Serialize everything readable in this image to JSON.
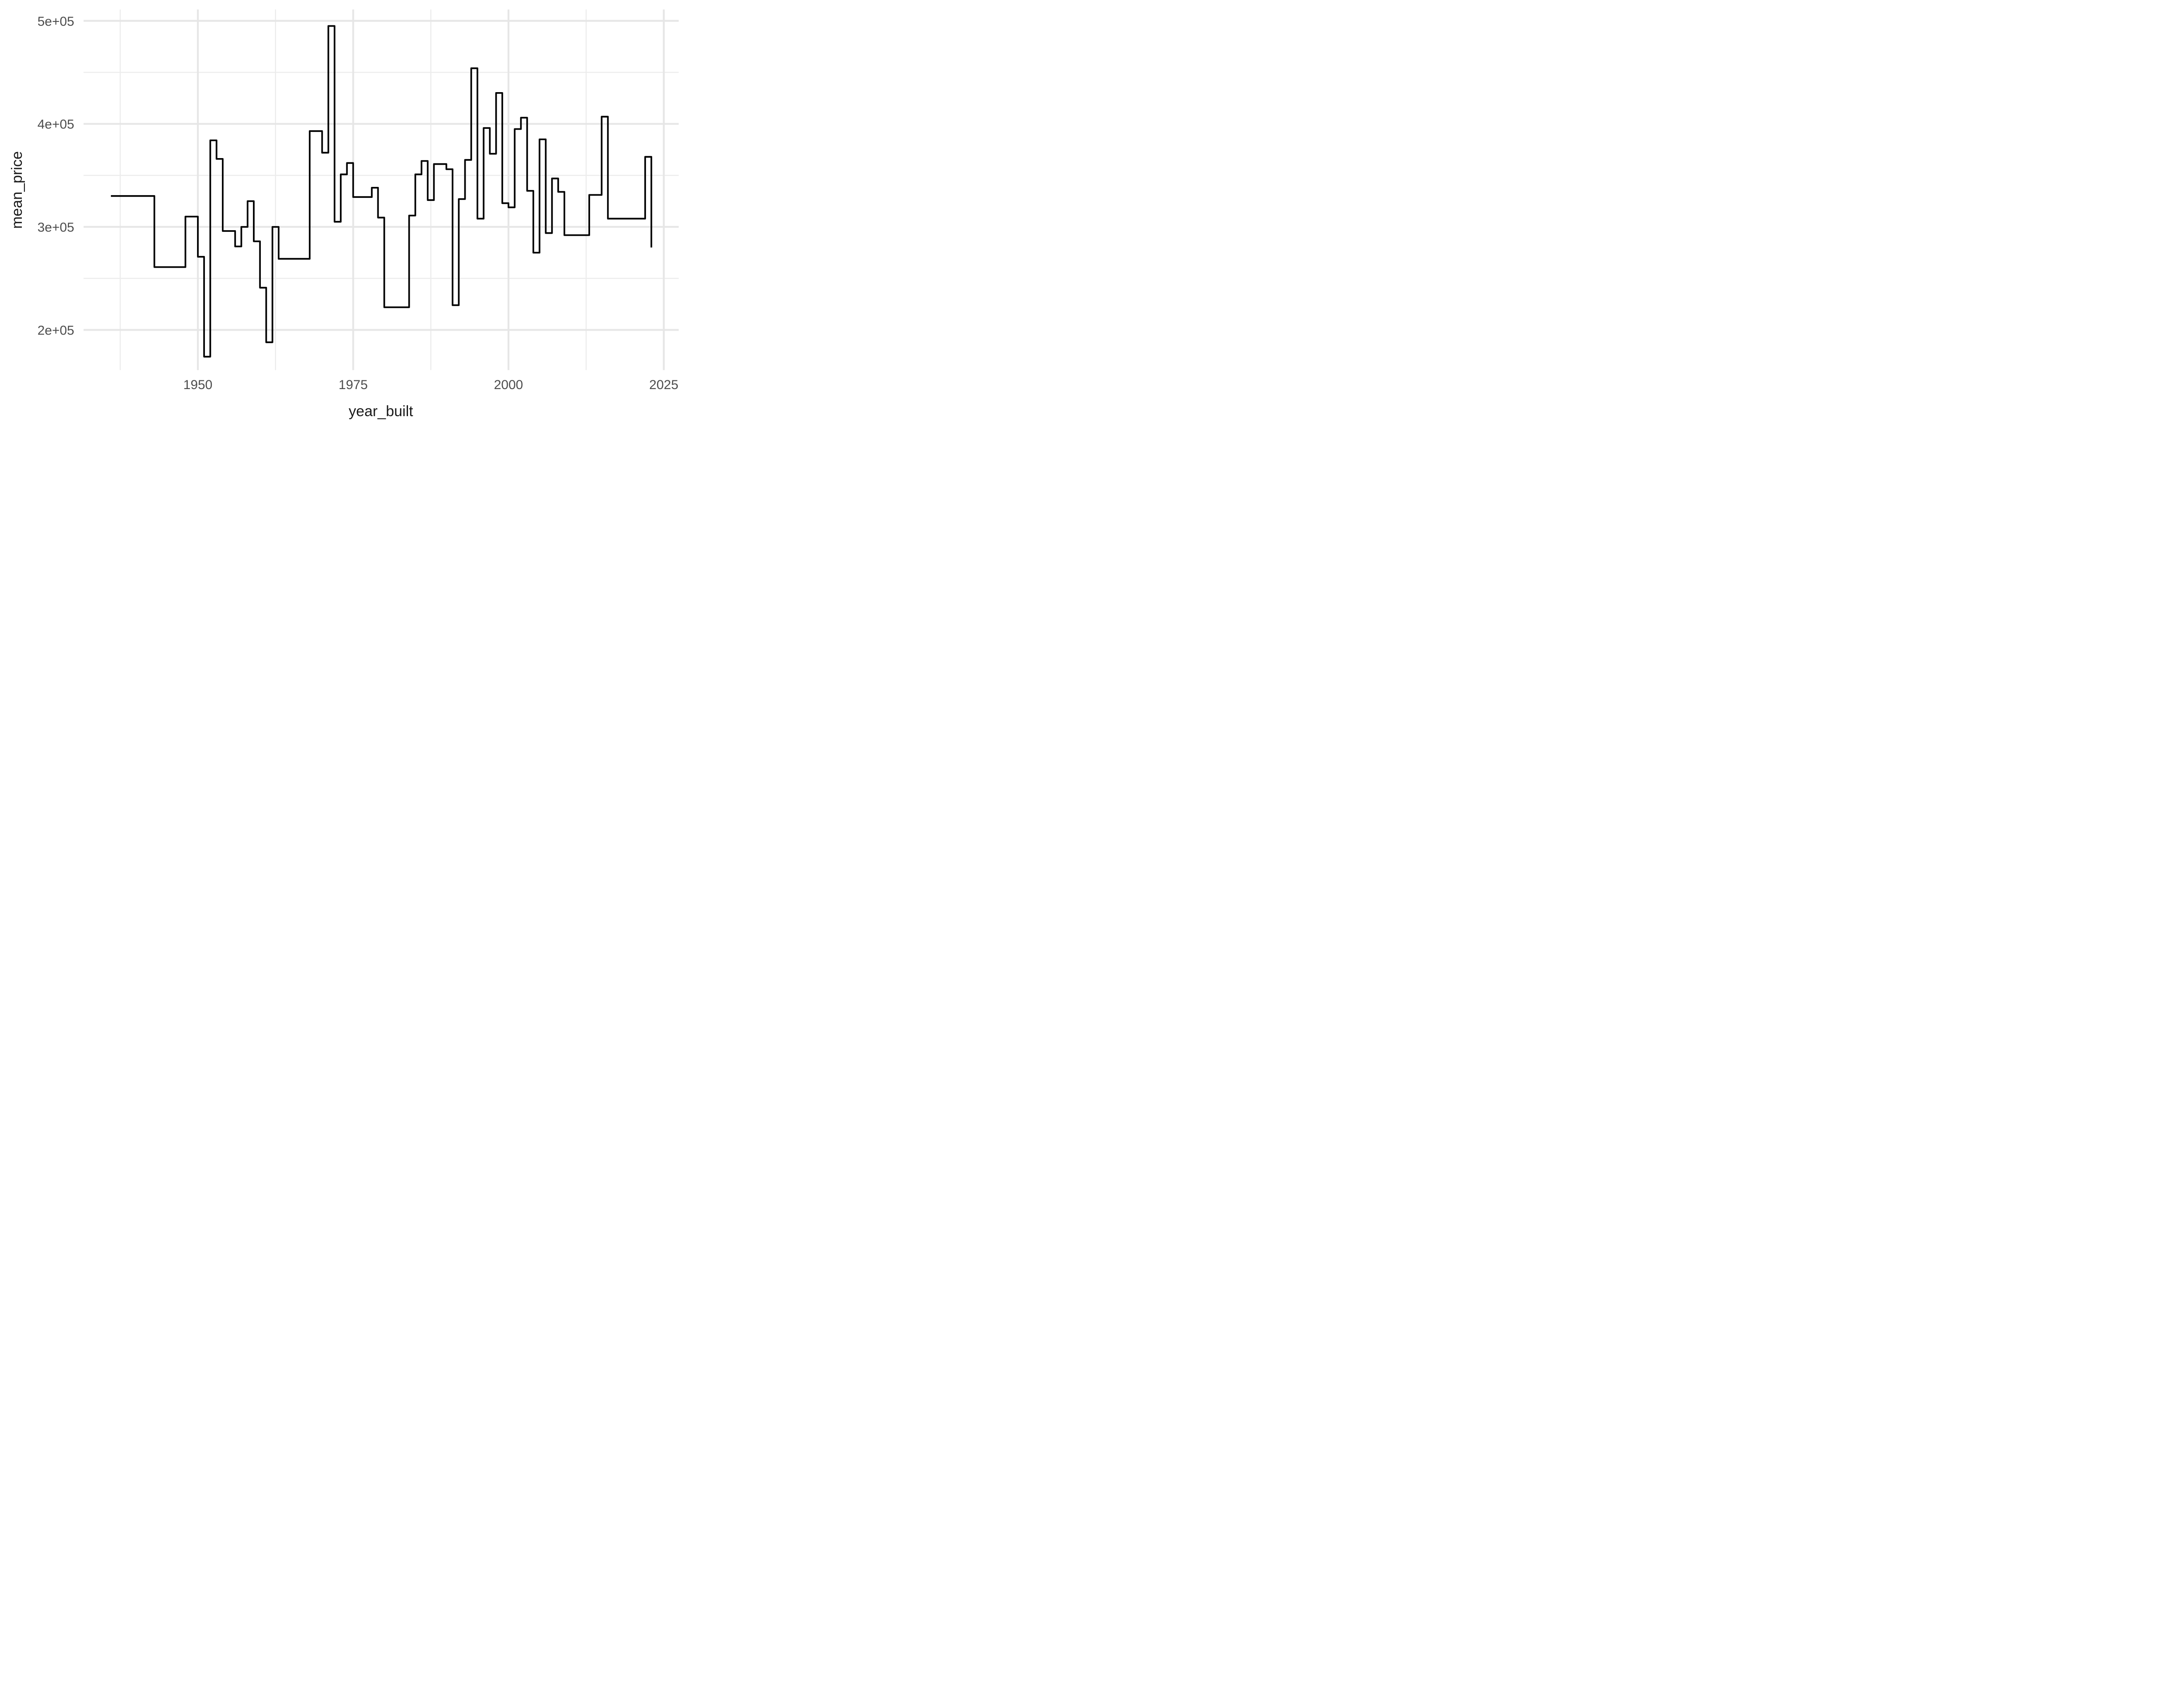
{
  "figure": {
    "background": "#FFFFFF",
    "x_axis_title": "year_built",
    "y_axis_title": "mean_price"
  },
  "chart_data": {
    "type": "line",
    "step": "hv",
    "title": "",
    "xlabel": "year_built",
    "ylabel": "mean_price",
    "x": [
      1936,
      1943,
      1948,
      1950,
      1951,
      1952,
      1953,
      1954,
      1956,
      1957,
      1958,
      1959,
      1960,
      1961,
      1962,
      1963,
      1968,
      1970,
      1971,
      1972,
      1973,
      1974,
      1975,
      1978,
      1979,
      1980,
      1984,
      1985,
      1986,
      1987,
      1988,
      1990,
      1991,
      1992,
      1993,
      1994,
      1995,
      1996,
      1997,
      1998,
      1999,
      2000,
      2001,
      2002,
      2003,
      2004,
      2005,
      2006,
      2007,
      2008,
      2009,
      2013,
      2015,
      2016,
      2022,
      2023
    ],
    "y": [
      330000,
      261000,
      310000,
      271000,
      174000,
      384000,
      366000,
      296000,
      281000,
      300000,
      325000,
      286000,
      241000,
      188000,
      300000,
      269000,
      393000,
      372000,
      495000,
      305000,
      351000,
      362000,
      329000,
      338000,
      309000,
      222000,
      311000,
      351000,
      364000,
      326000,
      361000,
      356000,
      224000,
      327000,
      365000,
      454000,
      308000,
      396000,
      371000,
      430000,
      323000,
      319000,
      395000,
      406000,
      335000,
      275000,
      385000,
      294000,
      347000,
      334000,
      292000,
      331000,
      407000,
      308000,
      368000,
      280000
    ],
    "xlim": [
      1931.6,
      2027.4
    ],
    "ylim": [
      161000,
      511000
    ],
    "x_major_ticks": [
      {
        "value": 1950,
        "label": "1950"
      },
      {
        "value": 1975,
        "label": "1975"
      },
      {
        "value": 2000,
        "label": "2000"
      },
      {
        "value": 2025,
        "label": "2025"
      }
    ],
    "y_major_ticks": [
      {
        "value": 200000,
        "label": "2e+05"
      },
      {
        "value": 300000,
        "label": "3e+05"
      },
      {
        "value": 400000,
        "label": "4e+05"
      },
      {
        "value": 500000,
        "label": "5e+05"
      }
    ],
    "x_minor_ticks": [
      1937.5,
      1962.5,
      1987.5,
      2012.5
    ],
    "y_minor_ticks": [
      250000,
      350000,
      450000
    ],
    "grid": true,
    "legend": "none",
    "line_color": "#000000",
    "grid_major_color": "#E6E6E6",
    "grid_minor_color": "#ECECEC",
    "tick_text_color": "#4D4D4D",
    "axis_title_color": "#1A1A1A"
  }
}
